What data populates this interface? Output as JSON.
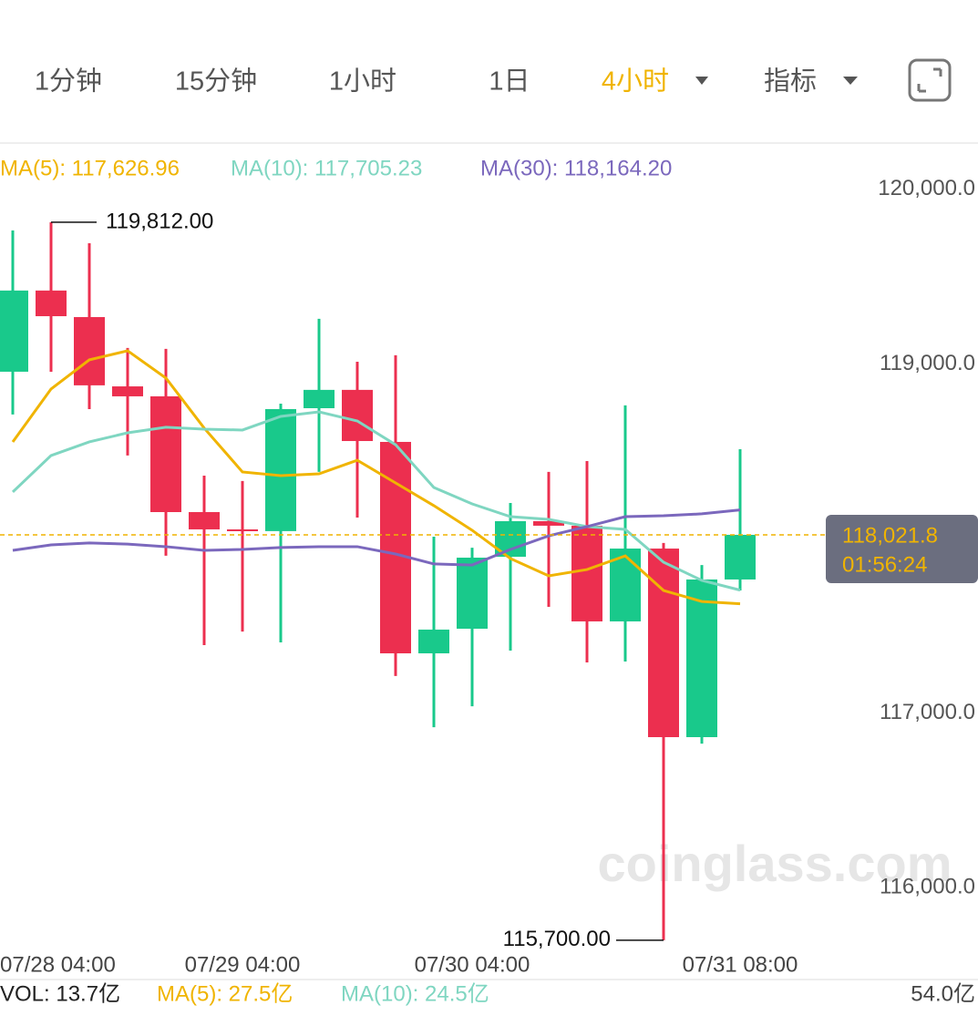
{
  "tabs": [
    "1分钟",
    "15分钟",
    "1小时",
    "1日",
    "4小时",
    "指标"
  ],
  "watermark": "coinglass.com",
  "chart_data": {
    "type": "candlestick",
    "categories": [
      "07/28 04:00",
      null,
      null,
      null,
      null,
      null,
      "07/29 04:00",
      null,
      null,
      null,
      null,
      null,
      "07/30 04:00",
      null,
      null,
      null,
      null,
      null,
      null,
      "07/31 08:00"
    ],
    "open": [
      118956,
      119421,
      119269,
      118872,
      118815,
      118152,
      118053,
      118043,
      118747,
      118852,
      118554,
      117343,
      117484,
      117896,
      118100,
      118074,
      117526,
      117943,
      116863,
      117766
    ],
    "high": [
      119765,
      119812,
      119692,
      119092,
      119087,
      118361,
      118330,
      118773,
      119259,
      119013,
      119050,
      118011,
      117948,
      118204,
      118382,
      118444,
      118763,
      117975,
      117849,
      118512
    ],
    "low": [
      118711,
      118956,
      118742,
      118476,
      117902,
      117390,
      117468,
      117406,
      118382,
      118121,
      117213,
      116920,
      117040,
      117359,
      117609,
      117291,
      117296,
      115700,
      116826,
      117703
    ],
    "close": [
      119421,
      119274,
      118878,
      118815,
      118152,
      118053,
      118043,
      118742,
      118852,
      118559,
      117343,
      117479,
      117891,
      118100,
      118074,
      117526,
      117943,
      116863,
      117766,
      118021.8
    ],
    "up_color": "#19c98b",
    "down_color": "#ec2f4f",
    "series": [
      {
        "name": "MA(5)",
        "label": "MA(5): 117,626.96",
        "color": "#f0b400",
        "values": [
          118554,
          118857,
          119024,
          119076,
          118920,
          118633,
          118382,
          118361,
          118371,
          118449,
          118319,
          118189,
          118048,
          117886,
          117787,
          117823,
          117901,
          117703,
          117640,
          117626.96
        ]
      },
      {
        "name": "MA(10)",
        "label": "MA(10): 117,705.23",
        "color": "#7fd6c1",
        "values": [
          118267,
          118476,
          118554,
          118606,
          118638,
          118627,
          118622,
          118700,
          118726,
          118674,
          118538,
          118293,
          118199,
          118126,
          118110,
          118069,
          118053,
          117865,
          117761,
          117705.23
        ]
      },
      {
        "name": "MA(30)",
        "label": "MA(30): 118,164.20",
        "color": "#7b68bd",
        "values": [
          117933,
          117964,
          117975,
          117969,
          117954,
          117933,
          117938,
          117949,
          117954,
          117954,
          117912,
          117855,
          117849,
          117938,
          118016,
          118069,
          118126,
          118131,
          118142,
          118164.2
        ]
      }
    ],
    "ylim": [
      115600,
      120250
    ],
    "yticks": [
      {
        "value": 120000,
        "label": "120,000.0"
      },
      {
        "value": 119000,
        "label": "119,000.0"
      },
      {
        "value": 117000,
        "label": "117,000.0"
      },
      {
        "value": 116000,
        "label": "116,000.0"
      }
    ],
    "max_label": {
      "value": 119812,
      "label": "119,812.00"
    },
    "min_label": {
      "value": 115700,
      "label": "115,700.00"
    },
    "price_line": {
      "value": 118021.8,
      "label": "118,021.8",
      "countdown": "01:56:24"
    },
    "volume_legend": {
      "vol": "VOL: 13.7亿",
      "ma5": "MA(5): 27.5亿",
      "ma10": "MA(10): 24.5亿",
      "max": "54.0亿"
    }
  }
}
